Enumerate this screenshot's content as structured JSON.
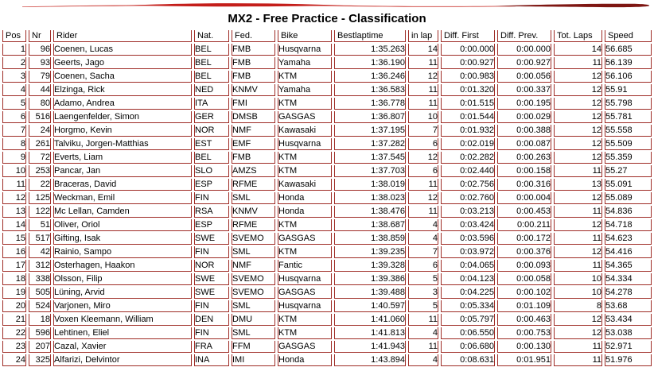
{
  "page": {
    "title": "MX2 - Free Practice - Classification"
  },
  "colors": {
    "grid_border": "#9e2b25",
    "swoosh_bright_red": "#c41e1a",
    "swoosh_dark_red": "#7e1612",
    "text": "#000000",
    "background": "#ffffff"
  },
  "decor": {
    "swoosh_icon": "red-brush-swoosh"
  },
  "table": {
    "columns": [
      {
        "key": "pos",
        "label": "Pos"
      },
      {
        "key": "nr",
        "label": "Nr"
      },
      {
        "key": "rider",
        "label": "Rider"
      },
      {
        "key": "nat",
        "label": "Nat."
      },
      {
        "key": "fed",
        "label": "Fed."
      },
      {
        "key": "bike",
        "label": "Bike"
      },
      {
        "key": "bestlaptime",
        "label": "Bestlaptime"
      },
      {
        "key": "in_lap",
        "label": "in lap"
      },
      {
        "key": "diff_first",
        "label": "Diff. First"
      },
      {
        "key": "diff_prev",
        "label": "Diff. Prev."
      },
      {
        "key": "tot_laps",
        "label": "Tot. Laps"
      },
      {
        "key": "speed",
        "label": "Speed"
      }
    ],
    "rows": [
      [
        "1",
        "96",
        "Coenen, Lucas",
        "BEL",
        "FMB",
        "Husqvarna",
        "1:35.263",
        "14",
        "0:00.000",
        "0:00.000",
        "14",
        "56.685"
      ],
      [
        "2",
        "93",
        "Geerts, Jago",
        "BEL",
        "FMB",
        "Yamaha",
        "1:36.190",
        "11",
        "0:00.927",
        "0:00.927",
        "11",
        "56.139"
      ],
      [
        "3",
        "79",
        "Coenen, Sacha",
        "BEL",
        "FMB",
        "KTM",
        "1:36.246",
        "12",
        "0:00.983",
        "0:00.056",
        "12",
        "56.106"
      ],
      [
        "4",
        "44",
        "Elzinga, Rick",
        "NED",
        "KNMV",
        "Yamaha",
        "1:36.583",
        "11",
        "0:01.320",
        "0:00.337",
        "12",
        "55.91"
      ],
      [
        "5",
        "80",
        "Adamo, Andrea",
        "ITA",
        "FMI",
        "KTM",
        "1:36.778",
        "11",
        "0:01.515",
        "0:00.195",
        "12",
        "55.798"
      ],
      [
        "6",
        "516",
        "Laengenfelder, Simon",
        "GER",
        "DMSB",
        "GASGAS",
        "1:36.807",
        "10",
        "0:01.544",
        "0:00.029",
        "12",
        "55.781"
      ],
      [
        "7",
        "24",
        "Horgmo, Kevin",
        "NOR",
        "NMF",
        "Kawasaki",
        "1:37.195",
        "7",
        "0:01.932",
        "0:00.388",
        "12",
        "55.558"
      ],
      [
        "8",
        "261",
        "Talviku, Jorgen-Matthias",
        "EST",
        "EMF",
        "Husqvarna",
        "1:37.282",
        "6",
        "0:02.019",
        "0:00.087",
        "12",
        "55.509"
      ],
      [
        "9",
        "72",
        "Everts, Liam",
        "BEL",
        "FMB",
        "KTM",
        "1:37.545",
        "12",
        "0:02.282",
        "0:00.263",
        "12",
        "55.359"
      ],
      [
        "10",
        "253",
        "Pancar, Jan",
        "SLO",
        "AMZS",
        "KTM",
        "1:37.703",
        "6",
        "0:02.440",
        "0:00.158",
        "11",
        "55.27"
      ],
      [
        "11",
        "22",
        "Braceras, David",
        "ESP",
        "RFME",
        "Kawasaki",
        "1:38.019",
        "11",
        "0:02.756",
        "0:00.316",
        "13",
        "55.091"
      ],
      [
        "12",
        "125",
        "Weckman, Emil",
        "FIN",
        "SML",
        "Honda",
        "1:38.023",
        "12",
        "0:02.760",
        "0:00.004",
        "12",
        "55.089"
      ],
      [
        "13",
        "122",
        "Mc Lellan, Camden",
        "RSA",
        "KNMV",
        "Honda",
        "1:38.476",
        "11",
        "0:03.213",
        "0:00.453",
        "11",
        "54.836"
      ],
      [
        "14",
        "51",
        "Oliver, Oriol",
        "ESP",
        "RFME",
        "KTM",
        "1:38.687",
        "4",
        "0:03.424",
        "0:00.211",
        "12",
        "54.718"
      ],
      [
        "15",
        "517",
        "Gifting, Isak",
        "SWE",
        "SVEMO",
        "GASGAS",
        "1:38.859",
        "4",
        "0:03.596",
        "0:00.172",
        "11",
        "54.623"
      ],
      [
        "16",
        "42",
        "Rainio, Sampo",
        "FIN",
        "SML",
        "KTM",
        "1:39.235",
        "7",
        "0:03.972",
        "0:00.376",
        "12",
        "54.416"
      ],
      [
        "17",
        "312",
        "Osterhagen, Haakon",
        "NOR",
        "NMF",
        "Fantic",
        "1:39.328",
        "6",
        "0:04.065",
        "0:00.093",
        "11",
        "54.365"
      ],
      [
        "18",
        "338",
        "Olsson, Filip",
        "SWE",
        "SVEMO",
        "Husqvarna",
        "1:39.386",
        "5",
        "0:04.123",
        "0:00.058",
        "10",
        "54.334"
      ],
      [
        "19",
        "505",
        "Lüning, Arvid",
        "SWE",
        "SVEMO",
        "GASGAS",
        "1:39.488",
        "3",
        "0:04.225",
        "0:00.102",
        "10",
        "54.278"
      ],
      [
        "20",
        "524",
        "Varjonen, Miro",
        "FIN",
        "SML",
        "Husqvarna",
        "1:40.597",
        "5",
        "0:05.334",
        "0:01.109",
        "8",
        "53.68"
      ],
      [
        "21",
        "18",
        "Voxen Kleemann, William",
        "DEN",
        "DMU",
        "KTM",
        "1:41.060",
        "11",
        "0:05.797",
        "0:00.463",
        "12",
        "53.434"
      ],
      [
        "22",
        "596",
        "Lehtinen, Eliel",
        "FIN",
        "SML",
        "KTM",
        "1:41.813",
        "4",
        "0:06.550",
        "0:00.753",
        "12",
        "53.038"
      ],
      [
        "23",
        "207",
        "Cazal, Xavier",
        "FRA",
        "FFM",
        "GASGAS",
        "1:41.943",
        "11",
        "0:06.680",
        "0:00.130",
        "11",
        "52.971"
      ],
      [
        "24",
        "325",
        "Alfarizi, Delvintor",
        "INA",
        "IMI",
        "Honda",
        "1:43.894",
        "4",
        "0:08.631",
        "0:01.951",
        "11",
        "51.976"
      ]
    ]
  }
}
